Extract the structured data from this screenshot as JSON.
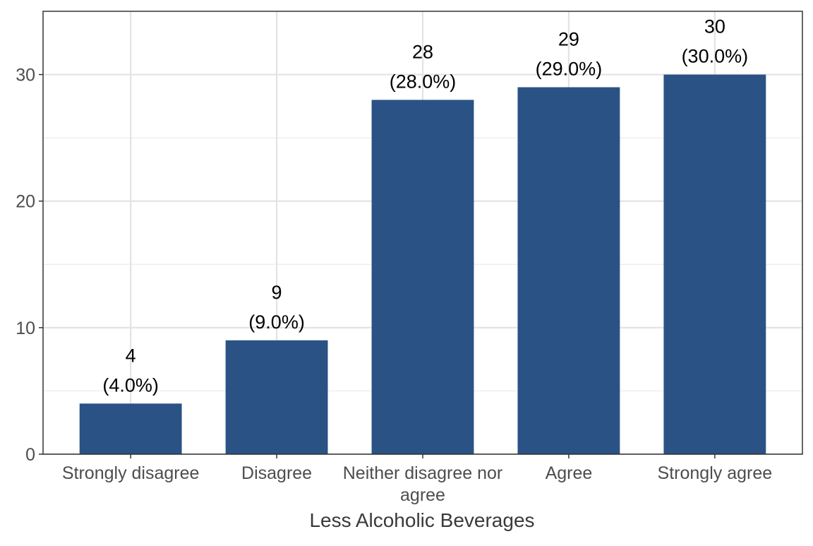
{
  "chart_data": {
    "type": "bar",
    "title": "",
    "xlabel": "Less Alcoholic Beverages",
    "ylabel": "",
    "categories": [
      [
        "Strongly disagree"
      ],
      [
        "Disagree"
      ],
      [
        "Neither disagree nor",
        "agree"
      ],
      [
        "Agree"
      ],
      [
        "Strongly agree"
      ]
    ],
    "values": [
      4,
      9,
      28,
      29,
      30
    ],
    "value_labels": [
      "4",
      "9",
      "28",
      "29",
      "30"
    ],
    "percent_labels": [
      "(4.0%)",
      "(9.0%)",
      "(28.0%)",
      "(29.0%)",
      "(30.0%)"
    ],
    "ylim": [
      0,
      35
    ],
    "yticks": [
      0,
      10,
      20,
      30
    ],
    "ytick_labels": [
      "0",
      "10",
      "20",
      "30"
    ],
    "grid": true,
    "legend": "none",
    "bar_color": "#2a5285"
  }
}
